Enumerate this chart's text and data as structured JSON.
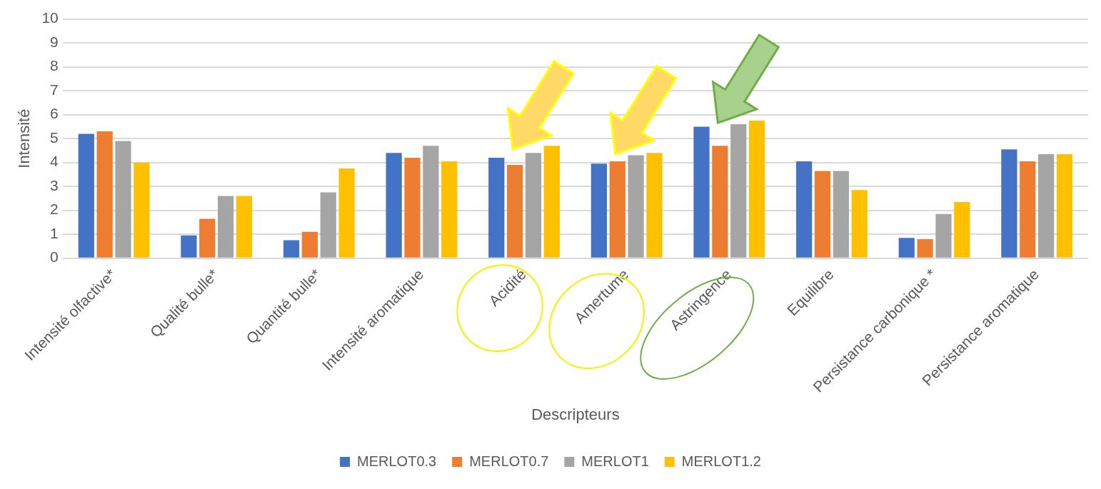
{
  "chart_data": {
    "type": "bar",
    "xlabel": "Descripteurs",
    "ylabel": "Intensité",
    "categories": [
      "Intensité olfactive*",
      "Qualité bulle*",
      "Quantité bulle*",
      "Intensité aromatique",
      "Acidité",
      "Amertume",
      "Astringence",
      "Equilibre",
      "Persistance carbonique *",
      "Persistance aromatique"
    ],
    "series": [
      {
        "name": "MERLOT0.3",
        "color": "#4472c4",
        "values": [
          5.2,
          0.95,
          0.75,
          4.4,
          4.2,
          3.95,
          5.5,
          4.05,
          0.85,
          4.55
        ]
      },
      {
        "name": "MERLOT0.7",
        "color": "#ed7d31",
        "values": [
          5.3,
          1.65,
          1.1,
          4.2,
          3.9,
          4.05,
          4.7,
          3.65,
          0.8,
          4.05
        ]
      },
      {
        "name": "MERLOT1",
        "color": "#a5a5a5",
        "values": [
          4.9,
          2.6,
          2.75,
          4.7,
          4.4,
          4.3,
          5.6,
          3.65,
          1.85,
          4.35
        ]
      },
      {
        "name": "MERLOT1.2",
        "color": "#ffc000",
        "values": [
          4.0,
          2.6,
          3.75,
          4.05,
          4.7,
          4.4,
          5.75,
          2.85,
          2.35,
          4.35
        ]
      }
    ],
    "ylim": [
      0,
      10
    ],
    "yticks": [
      0,
      1,
      2,
      3,
      4,
      5,
      6,
      7,
      8,
      9,
      10
    ],
    "grid": "y",
    "legend": "bottom"
  }
}
